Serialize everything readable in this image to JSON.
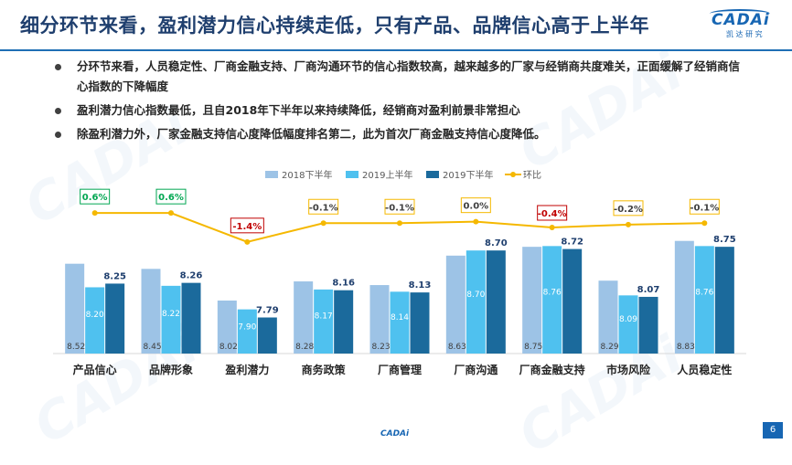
{
  "header": {
    "title": "细分环节来看，盈利潜力信心持续走低，只有产品、品牌信心高于上半年",
    "logo_text": "CADAi",
    "logo_sub": "凯 达 研 究"
  },
  "bullets": [
    {
      "text": "分环节来看，人员稳定性、厂商金融支持、厂商沟通环节的信心指数较高，越来越多的厂家与经销商共度难关，正面缓解了经销商信心指数的下降幅度"
    },
    {
      "text": "盈利潜力信心指数最低，且自2018年下半年以来持续降低，经销商对盈利前景非常担心"
    },
    {
      "text": "除盈利潜力外，厂家金融支持信心度降低幅度排名第二，此为首次厂商金融支持信心度降低。"
    }
  ],
  "chart_data": {
    "type": "bar",
    "categories": [
      "产品信心",
      "品牌形象",
      "盈利潜力",
      "商务政策",
      "厂商管理",
      "厂商沟通",
      "厂商金融支持",
      "市场风险",
      "人员稳定性"
    ],
    "series": [
      {
        "name": "2018下半年",
        "type": "bar",
        "color": "#9dc3e6",
        "values": [
          8.52,
          8.45,
          8.02,
          8.28,
          8.23,
          8.63,
          8.75,
          8.29,
          8.83
        ]
      },
      {
        "name": "2019上半年",
        "type": "bar",
        "color": "#4fc1ef",
        "values": [
          8.2,
          8.22,
          7.9,
          8.17,
          8.14,
          8.7,
          8.76,
          8.09,
          8.76
        ]
      },
      {
        "name": "2019下半年",
        "type": "bar",
        "color": "#1b6a9c",
        "values": [
          8.25,
          8.26,
          7.79,
          8.16,
          8.13,
          8.7,
          8.72,
          8.07,
          8.75
        ]
      },
      {
        "name": "环比",
        "type": "line",
        "color": "#f5b800",
        "values": [
          0.6,
          0.6,
          -1.4,
          -0.1,
          -0.1,
          0.0,
          -0.4,
          -0.2,
          -0.1
        ]
      }
    ],
    "change_labels": [
      "0.6%",
      "0.6%",
      "-1.4%",
      "-0.1%",
      "-0.1%",
      "0.0%",
      "-0.4%",
      "-0.2%",
      "-0.1%"
    ],
    "bar_labels_2018h2": [
      "8.52",
      "8.45",
      "8.02",
      "8.28",
      "8.23",
      "8.63",
      "8.75",
      "8.29",
      "8.83"
    ],
    "bar_labels_2019h1": [
      "8.20",
      "8.22",
      "7.90",
      "8.17",
      "8.14",
      "8.70",
      "8.76",
      "8.09",
      "8.76"
    ],
    "bar_labels_2019h2": [
      "8.25",
      "8.26",
      "7.79",
      "8.16",
      "8.13",
      "8.70",
      "8.72",
      "8.07",
      "8.75"
    ],
    "ylim": [
      7.3,
      9.0
    ],
    "legend_position": "top-center",
    "grid": false
  },
  "footer": {
    "logo_text": "CADAi",
    "page_number": "6"
  }
}
